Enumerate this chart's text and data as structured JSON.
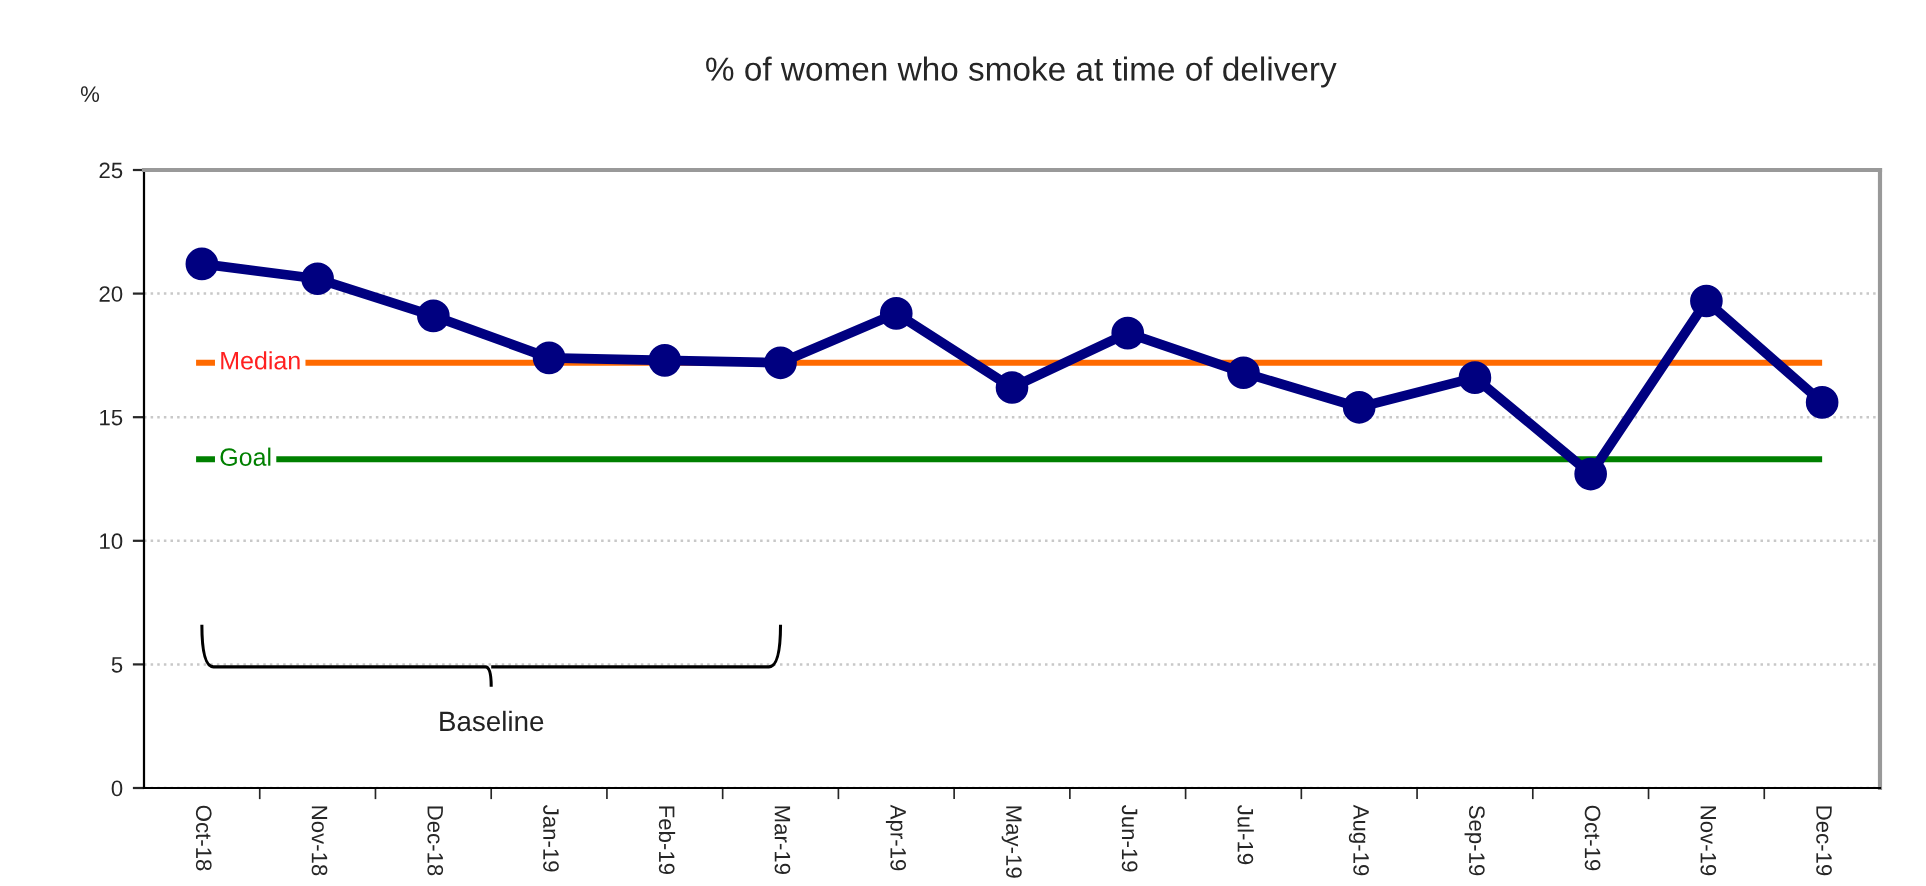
{
  "chart_data": {
    "type": "line",
    "title": "% of women who smoke at time of delivery",
    "ylabel": "%",
    "categories": [
      "Oct-18",
      "Nov-18",
      "Dec-18",
      "Jan-19",
      "Feb-19",
      "Mar-19",
      "Apr-19",
      "May-19",
      "Jun-19",
      "Jul-19",
      "Aug-19",
      "Sep-19",
      "Oct-19",
      "Nov-19",
      "Dec-19"
    ],
    "series": [
      {
        "color": "#000080",
        "values": [
          21.2,
          20.6,
          19.1,
          17.4,
          17.3,
          17.2,
          19.2,
          16.2,
          18.4,
          16.8,
          15.4,
          16.6,
          12.7,
          19.7,
          15.6
        ]
      }
    ],
    "ylim": [
      0,
      25
    ],
    "yticks": [
      0,
      5,
      10,
      15,
      20,
      25
    ],
    "grid": "y",
    "marker": "circle",
    "line_style": "solid",
    "ref_lines": [
      {
        "axis": "y",
        "value": 17.2,
        "label": "Median",
        "color": "#ff6a00"
      },
      {
        "axis": "y",
        "value": 13.3,
        "label": "Goal",
        "color": "#008000"
      }
    ],
    "annotations": [
      "Baseline"
    ]
  }
}
